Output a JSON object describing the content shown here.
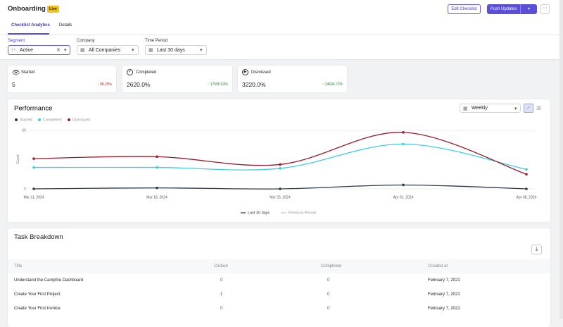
{
  "header": {
    "title": "Onboarding",
    "badge": "Live",
    "edit_button": "Edit Checklist",
    "push_button": "Push Updates"
  },
  "tabs": [
    "Checklist Analytics",
    "Details"
  ],
  "filters": [
    {
      "label": "Segment",
      "value": "Active"
    },
    {
      "label": "Company",
      "value": "All Companies"
    },
    {
      "label": "Time Period",
      "value": "Last 30 days"
    }
  ],
  "stats": [
    {
      "label": "Started",
      "value": "5",
      "change": "98.29%"
    },
    {
      "label": "Completed",
      "value": "2620.0%",
      "change": "17695.63%"
    },
    {
      "label": "Dismissed",
      "value": "3220.0%",
      "change": "24606.72%"
    }
  ],
  "interval": "Weekly",
  "chart_data": {
    "type": "line",
    "title": "Performance",
    "y_label": "Count",
    "categories": [
      "Mar 11, 2024",
      "Mar 18, 2024",
      "Mar 25, 2024",
      "Apr 01, 2024",
      "Apr 08, 2024"
    ],
    "series": [
      {
        "name": "Started",
        "color": "#2d3a4a",
        "values": [
          0,
          1,
          0,
          4,
          0
        ]
      },
      {
        "name": "Completed",
        "color": "#3ccfe0",
        "values": [
          22,
          22,
          21,
          46,
          20
        ]
      },
      {
        "name": "Dismissed",
        "color": "#9a1b2b",
        "values": [
          31,
          33,
          25,
          58,
          15
        ]
      }
    ],
    "ylim": [
      0,
      60
    ],
    "yticks": [
      0,
      60
    ],
    "grid": true,
    "smooth": true,
    "period_legend": [
      "Last 30 days",
      "Previous Period"
    ]
  },
  "task_breakdown": {
    "title": "Task Breakdown",
    "columns": [
      "Title",
      "Clicked",
      "Completed",
      "Created at"
    ],
    "rows": [
      [
        "Understand the Campfire Dashboard",
        "0",
        "0",
        "February 7, 2021"
      ],
      [
        "Create Your First Project",
        "1",
        "0",
        "February 7, 2021"
      ],
      [
        "Create Your First Invoice",
        "0",
        "0",
        "February 7, 2021"
      ]
    ]
  }
}
